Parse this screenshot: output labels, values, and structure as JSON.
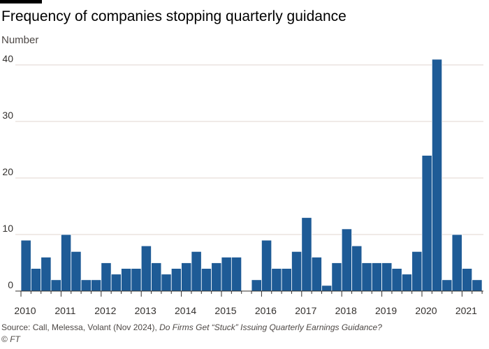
{
  "colors": {
    "bar": "#1e5b96",
    "bar_stroke": "#ffffff",
    "grid": "#e2d6cf",
    "axis": "#33302e",
    "text": "#33302e"
  },
  "chart_data": {
    "type": "bar",
    "title": "Frequency of companies stopping quarterly guidance",
    "ylabel": "Number",
    "xlabel": "",
    "ylim": [
      0,
      42
    ],
    "yticks": [
      0,
      10,
      20,
      30,
      40
    ],
    "grid": true,
    "legend": "none",
    "x_tick_labels": [
      "2010",
      "2011",
      "2012",
      "2013",
      "2014",
      "2015",
      "2016",
      "2017",
      "2018",
      "2019",
      "2020",
      "2021"
    ],
    "categories": [
      "2010 Q1",
      "2010 Q2",
      "2010 Q3",
      "2010 Q4",
      "2011 Q1",
      "2011 Q2",
      "2011 Q3",
      "2011 Q4",
      "2012 Q1",
      "2012 Q2",
      "2012 Q3",
      "2012 Q4",
      "2013 Q1",
      "2013 Q2",
      "2013 Q3",
      "2013 Q4",
      "2014 Q1",
      "2014 Q2",
      "2014 Q3",
      "2014 Q4",
      "2015 Q1",
      "2015 Q2",
      "2015 Q3",
      "2015 Q4",
      "2016 Q1",
      "2016 Q2",
      "2016 Q3",
      "2016 Q4",
      "2017 Q1",
      "2017 Q2",
      "2017 Q3",
      "2017 Q4",
      "2018 Q1",
      "2018 Q2",
      "2018 Q3",
      "2018 Q4",
      "2019 Q1",
      "2019 Q2",
      "2019 Q3",
      "2019 Q4",
      "2020 Q1",
      "2020 Q2",
      "2020 Q3",
      "2020 Q4",
      "2021 Q1",
      "2021 Q2"
    ],
    "values": [
      9,
      4,
      6,
      2,
      10,
      7,
      2,
      2,
      5,
      3,
      4,
      4,
      8,
      5,
      3,
      4,
      5,
      7,
      4,
      5,
      6,
      6,
      null,
      2,
      9,
      4,
      4,
      7,
      13,
      6,
      1,
      5,
      11,
      8,
      5,
      5,
      5,
      4,
      3,
      7,
      24,
      41,
      2,
      10,
      4,
      2
    ]
  },
  "source": {
    "prefix": "Source: Call, Melessa, Volant (Nov 2024), ",
    "title": "Do Firms Get “Stuck” Issuing Quarterly Earnings Guidance?"
  },
  "copyright": {
    "symbol": "© ",
    "org": "FT"
  }
}
